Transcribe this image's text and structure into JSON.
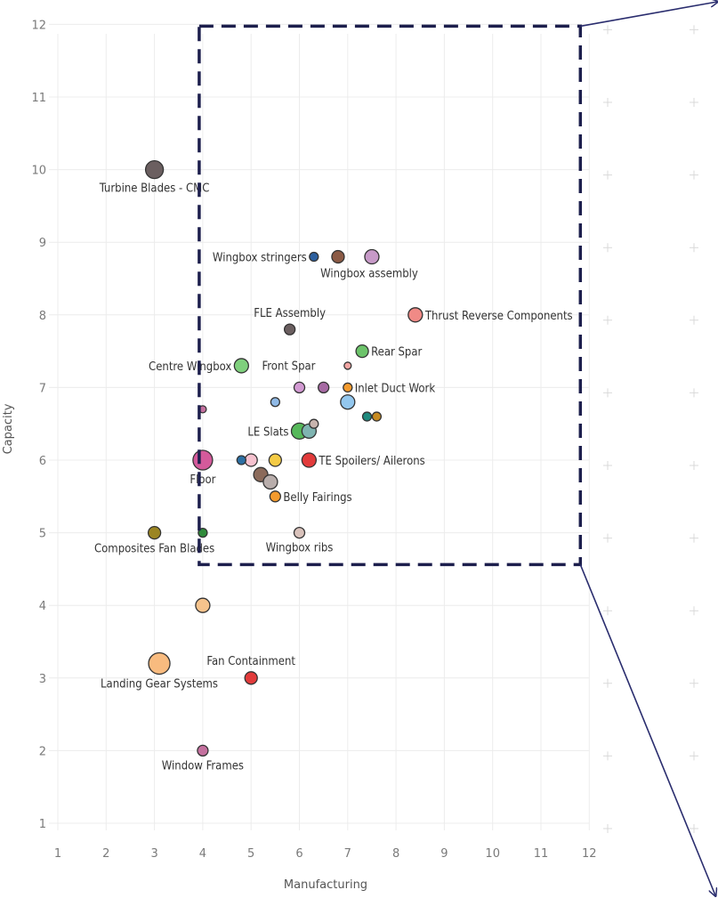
{
  "chart_data": {
    "type": "scatter",
    "xlabel": "Manufacturing",
    "ylabel": "Capacity",
    "xlim": [
      1,
      12
    ],
    "ylim": [
      1,
      12
    ],
    "x_ticks": [
      1,
      2,
      3,
      4,
      5,
      6,
      7,
      8,
      9,
      10,
      11,
      12
    ],
    "y_ticks": [
      1,
      2,
      3,
      4,
      5,
      6,
      7,
      8,
      9,
      10,
      11,
      12
    ],
    "grid": true,
    "highlight_box": {
      "x_range": [
        4,
        12
      ],
      "y_range": [
        4.5,
        12
      ]
    },
    "points": [
      {
        "x": 3.0,
        "y": 10.0,
        "size": 10,
        "color": "#6b5f60",
        "label": "Turbine Blades - CMC"
      },
      {
        "x": 6.3,
        "y": 8.8,
        "size": 5,
        "color": "#2c5f9e",
        "label": "Wingbox stringers"
      },
      {
        "x": 6.8,
        "y": 8.8,
        "size": 7,
        "color": "#8b5a45",
        "label": ""
      },
      {
        "x": 7.5,
        "y": 8.8,
        "size": 8,
        "color": "#c79ac8",
        "label": "Wingbox assembly"
      },
      {
        "x": 5.8,
        "y": 7.8,
        "size": 6,
        "color": "#6b5f60",
        "label": "FLE Assembly"
      },
      {
        "x": 8.4,
        "y": 8.0,
        "size": 8,
        "color": "#f08a86",
        "label": "Thrust Reverse Components"
      },
      {
        "x": 7.3,
        "y": 7.5,
        "size": 7,
        "color": "#6cc36a",
        "label": "Rear Spar"
      },
      {
        "x": 4.8,
        "y": 7.3,
        "size": 8,
        "color": "#7fd07d",
        "label": "Centre Wingbox"
      },
      {
        "x": 7.0,
        "y": 7.3,
        "size": 4,
        "color": "#f3a5a3",
        "label": ""
      },
      {
        "x": 6.0,
        "y": 7.0,
        "size": 6,
        "color": "#d39ad3",
        "label": "Front Spar"
      },
      {
        "x": 6.5,
        "y": 7.0,
        "size": 6,
        "color": "#a66aa3",
        "label": ""
      },
      {
        "x": 7.0,
        "y": 7.0,
        "size": 5,
        "color": "#f39a2d",
        "label": "Inlet Duct Work"
      },
      {
        "x": 5.5,
        "y": 6.8,
        "size": 5,
        "color": "#8fb9e6",
        "label": ""
      },
      {
        "x": 7.0,
        "y": 6.8,
        "size": 8,
        "color": "#93c7ee",
        "label": ""
      },
      {
        "x": 4.0,
        "y": 6.7,
        "size": 4,
        "color": "#c4709e",
        "label": ""
      },
      {
        "x": 7.4,
        "y": 6.6,
        "size": 5,
        "color": "#1f8a7e",
        "label": ""
      },
      {
        "x": 7.6,
        "y": 6.6,
        "size": 5,
        "color": "#c68a21",
        "label": ""
      },
      {
        "x": 6.3,
        "y": 6.5,
        "size": 5,
        "color": "#c8b4ae",
        "label": ""
      },
      {
        "x": 6.0,
        "y": 6.4,
        "size": 9,
        "color": "#56b85a",
        "label": "LE Slats"
      },
      {
        "x": 6.2,
        "y": 6.4,
        "size": 8,
        "color": "#7fb4b1",
        "label": ""
      },
      {
        "x": 4.0,
        "y": 6.0,
        "size": 11,
        "color": "#d45a9b",
        "label": "Floor"
      },
      {
        "x": 4.8,
        "y": 6.0,
        "size": 5,
        "color": "#2c6fa3",
        "label": ""
      },
      {
        "x": 5.0,
        "y": 6.0,
        "size": 7,
        "color": "#f6c2cf",
        "label": ""
      },
      {
        "x": 5.5,
        "y": 6.0,
        "size": 7,
        "color": "#f4cb45",
        "label": ""
      },
      {
        "x": 6.2,
        "y": 6.0,
        "size": 8,
        "color": "#e23b3b",
        "label": "TE Spoilers/ Ailerons"
      },
      {
        "x": 5.2,
        "y": 5.8,
        "size": 8,
        "color": "#8b6a5a",
        "label": ""
      },
      {
        "x": 5.4,
        "y": 5.7,
        "size": 8,
        "color": "#b8adab",
        "label": ""
      },
      {
        "x": 5.5,
        "y": 5.5,
        "size": 6,
        "color": "#f39a2d",
        "label": "Belly Fairings"
      },
      {
        "x": 3.0,
        "y": 5.0,
        "size": 7,
        "color": "#9b8522",
        "label": "Composites Fan Blades"
      },
      {
        "x": 4.0,
        "y": 5.0,
        "size": 5,
        "color": "#2f8a3a",
        "label": ""
      },
      {
        "x": 6.0,
        "y": 5.0,
        "size": 6,
        "color": "#d9c2bb",
        "label": "Wingbox ribs"
      },
      {
        "x": 4.0,
        "y": 4.0,
        "size": 8,
        "color": "#f6c38c",
        "label": ""
      },
      {
        "x": 3.1,
        "y": 3.2,
        "size": 12,
        "color": "#f8bb7f",
        "label": "Landing Gear Systems"
      },
      {
        "x": 5.0,
        "y": 3.0,
        "size": 7,
        "color": "#e23b3b",
        "label": "Fan Containment"
      },
      {
        "x": 4.0,
        "y": 2.0,
        "size": 6,
        "color": "#c4709e",
        "label": "Window Frames"
      }
    ]
  }
}
